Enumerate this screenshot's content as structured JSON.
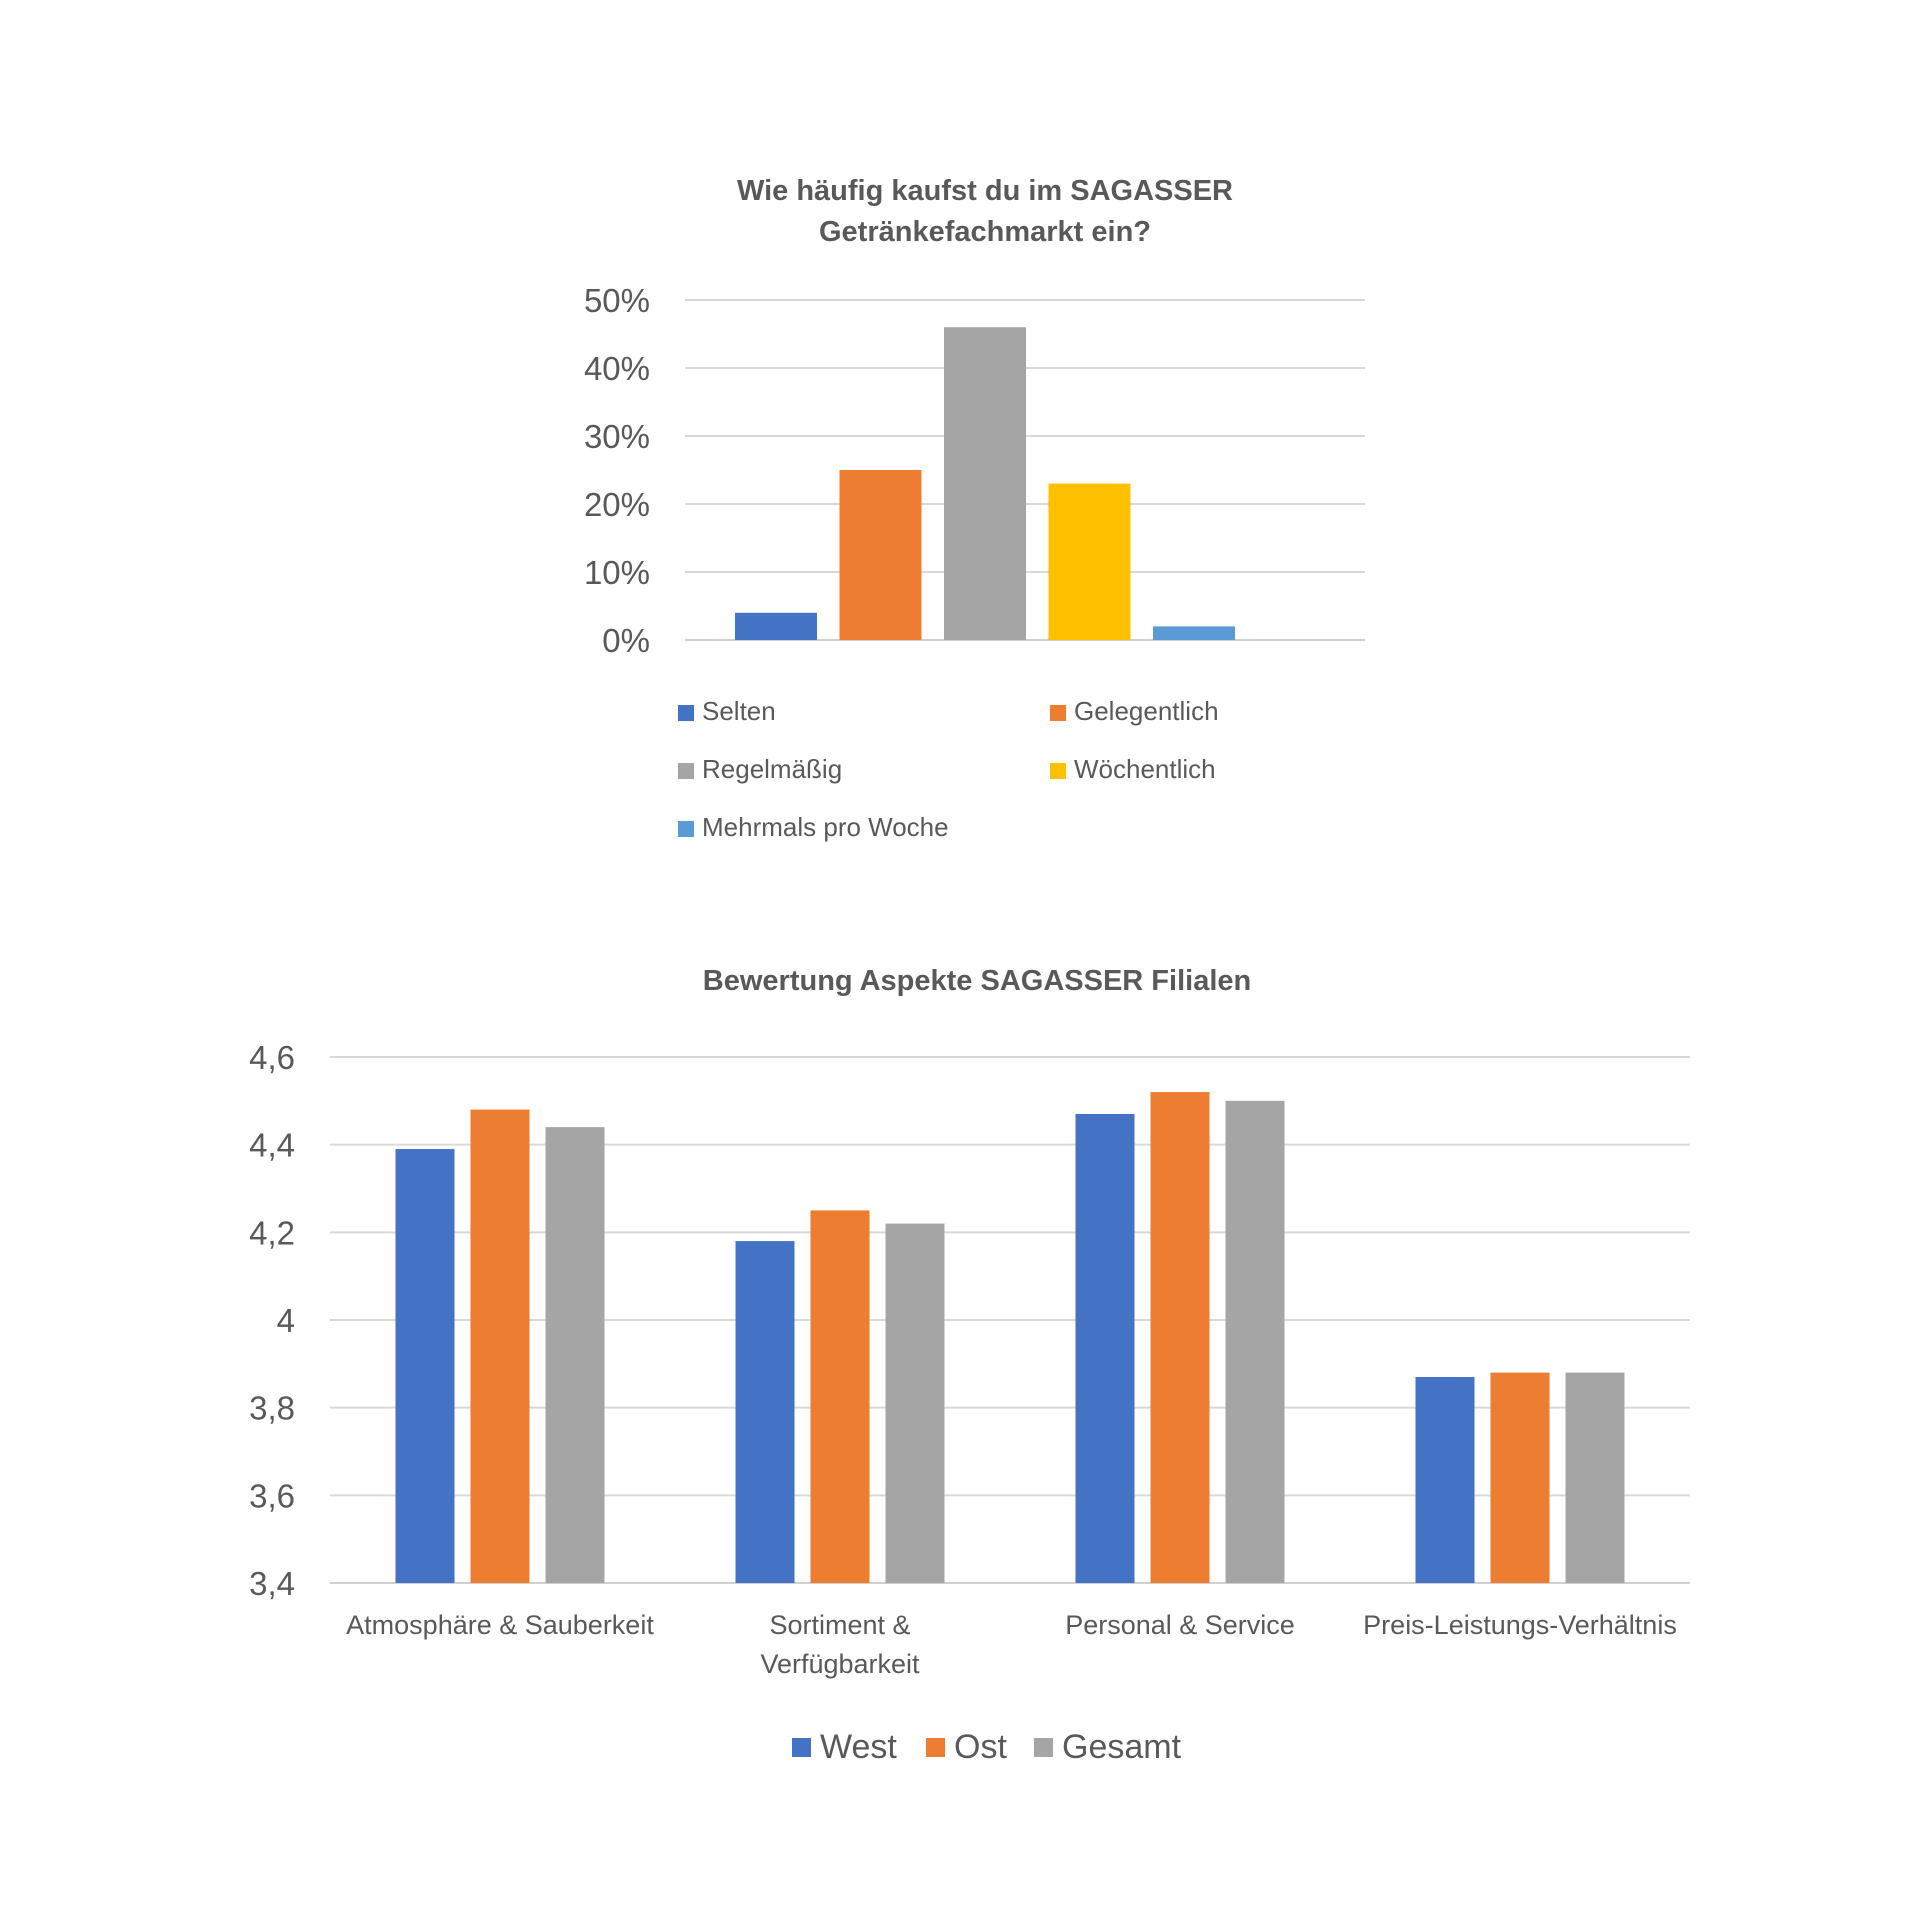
{
  "chart_data": [
    {
      "type": "bar",
      "title": [
        "Wie häufig kaufst du im SAGASSER",
        "Getränkefachmarkt ein?"
      ],
      "ytick_labels": [
        "0%",
        "10%",
        "20%",
        "30%",
        "40%",
        "50%"
      ],
      "ylim": [
        0,
        50
      ],
      "grid": true,
      "legend_position": "bottom",
      "series": [
        {
          "name": "Selten",
          "value": 4,
          "color": "#4472C4"
        },
        {
          "name": "Gelegentlich",
          "value": 25,
          "color": "#ED7D31"
        },
        {
          "name": "Regelmäßig",
          "value": 46,
          "color": "#A5A5A5"
        },
        {
          "name": "Wöchentlich",
          "value": 23,
          "color": "#FFC000"
        },
        {
          "name": "Mehrmals pro Woche",
          "value": 2,
          "color": "#5B9BD5"
        }
      ]
    },
    {
      "type": "bar",
      "title": "Bewertung Aspekte SAGASSER Filialen",
      "categories": [
        [
          "Atmosphäre & Sauberkeit"
        ],
        [
          "Sortiment &",
          "Verfügbarkeit"
        ],
        [
          "Personal & Service"
        ],
        [
          "Preis-Leistungs-Verhältnis"
        ]
      ],
      "ytick_labels": [
        "3,4",
        "3,6",
        "3,8",
        "4",
        "4,2",
        "4,4",
        "4,6"
      ],
      "ylim": [
        3.4,
        4.6
      ],
      "grid": true,
      "legend_position": "bottom",
      "series": [
        {
          "name": "West",
          "color": "#4472C4",
          "values": [
            4.39,
            4.18,
            4.47,
            3.87
          ]
        },
        {
          "name": "Ost",
          "color": "#ED7D31",
          "values": [
            4.48,
            4.25,
            4.52,
            3.88
          ]
        },
        {
          "name": "Gesamt",
          "color": "#A5A5A5",
          "values": [
            4.44,
            4.22,
            4.5,
            3.88
          ]
        }
      ]
    }
  ]
}
